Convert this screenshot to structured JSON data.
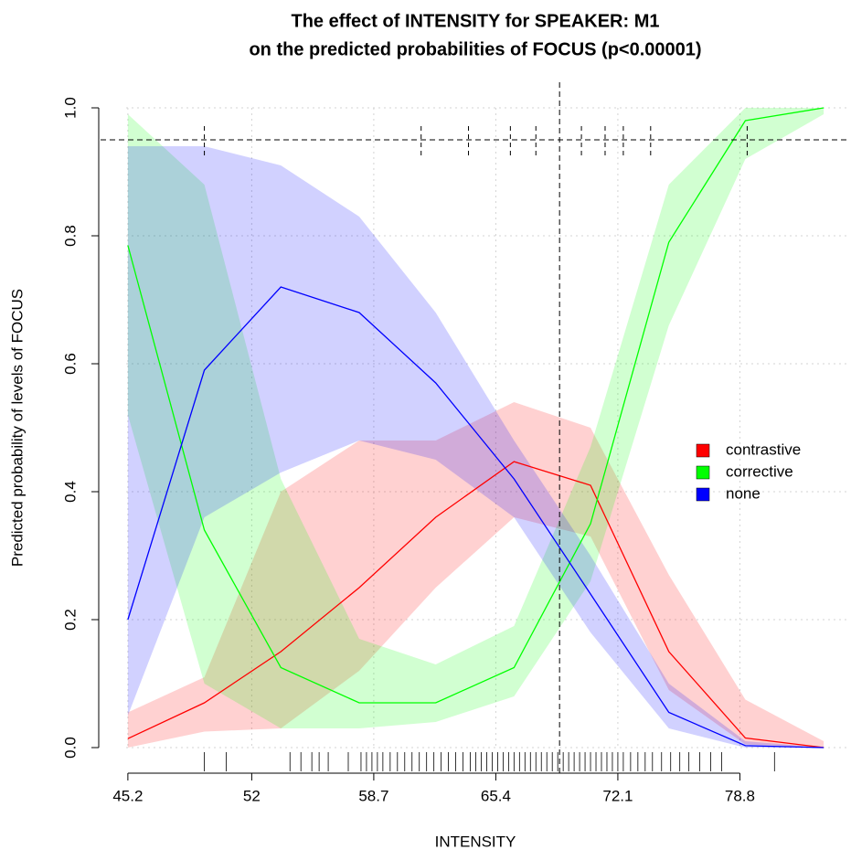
{
  "chart_data": {
    "type": "line",
    "title": [
      "The effect of INTENSITY for SPEAKER: M1",
      "on the predicted probabilities of FOCUS (p<0.00001)"
    ],
    "x_label": "INTENSITY",
    "y_label": "Predicted probability of levels of FOCUS",
    "x": [
      45.2,
      49.4,
      53.6,
      57.9,
      62.1,
      66.4,
      70.6,
      74.9,
      79.1,
      83.4
    ],
    "series": [
      {
        "name": "contrastive",
        "color": "#ff0000",
        "values": [
          0.014,
          0.07,
          0.15,
          0.25,
          0.36,
          0.447,
          0.41,
          0.15,
          0.015,
          0.0
        ],
        "lower": [
          0.0,
          0.025,
          0.03,
          0.12,
          0.25,
          0.36,
          0.33,
          0.09,
          0.005,
          0.0
        ],
        "upper": [
          0.055,
          0.11,
          0.4,
          0.48,
          0.48,
          0.54,
          0.5,
          0.27,
          0.075,
          0.01
        ]
      },
      {
        "name": "corrective",
        "color": "#00ff00",
        "values": [
          0.785,
          0.34,
          0.125,
          0.07,
          0.07,
          0.125,
          0.35,
          0.79,
          0.98,
          1.0
        ],
        "lower": [
          0.52,
          0.1,
          0.03,
          0.03,
          0.04,
          0.08,
          0.26,
          0.66,
          0.92,
          0.99
        ],
        "upper": [
          0.99,
          0.88,
          0.42,
          0.17,
          0.13,
          0.19,
          0.47,
          0.88,
          1.0,
          1.0
        ]
      },
      {
        "name": "none",
        "color": "#0000ff",
        "values": [
          0.2,
          0.59,
          0.72,
          0.68,
          0.57,
          0.42,
          0.24,
          0.055,
          0.003,
          0.0
        ],
        "lower": [
          0.05,
          0.36,
          0.43,
          0.48,
          0.45,
          0.36,
          0.18,
          0.03,
          0.0,
          0.0
        ],
        "upper": [
          0.94,
          0.94,
          0.91,
          0.83,
          0.68,
          0.48,
          0.3,
          0.1,
          0.01,
          0.0
        ]
      }
    ],
    "band_opacity": 0.18,
    "hline": 0.95,
    "vline": 68.9,
    "hline_marks": [
      49.4,
      61.3,
      63.9,
      66.2,
      67.6,
      70.1,
      71.4,
      72.4,
      73.9,
      79.2
    ],
    "rug": [
      49.4,
      50.6,
      54.1,
      54.7,
      55.3,
      55.7,
      56.2,
      57.3,
      58.0,
      58.3,
      58.6,
      58.9,
      59.2,
      59.6,
      60.0,
      60.4,
      60.8,
      61.2,
      61.6,
      62.0,
      62.4,
      62.8,
      63.2,
      63.6,
      64.0,
      64.3,
      64.6,
      64.9,
      65.2,
      65.5,
      65.8,
      66.1,
      66.4,
      66.7,
      67.0,
      67.3,
      67.6,
      67.9,
      68.2,
      68.5,
      68.8,
      69.1,
      69.4,
      69.7,
      70.0,
      70.3,
      70.6,
      70.9,
      71.2,
      71.5,
      71.8,
      72.1,
      72.4,
      72.8,
      73.2,
      73.6,
      74.0,
      74.5,
      75.0,
      75.5,
      76.0,
      76.6,
      77.2,
      77.8,
      80.7
    ],
    "xlim": [
      43.6,
      84.9
    ],
    "ylim": [
      -0.04,
      1.04
    ],
    "xticks": [
      45.2,
      52,
      58.7,
      65.4,
      72.1,
      78.8
    ],
    "yticks": [
      {
        "value": 0,
        "label": "0.0"
      },
      0.2,
      0.4,
      0.6,
      0.8,
      {
        "value": 1,
        "label": "1.0"
      }
    ],
    "grid": true,
    "legend": "right"
  }
}
